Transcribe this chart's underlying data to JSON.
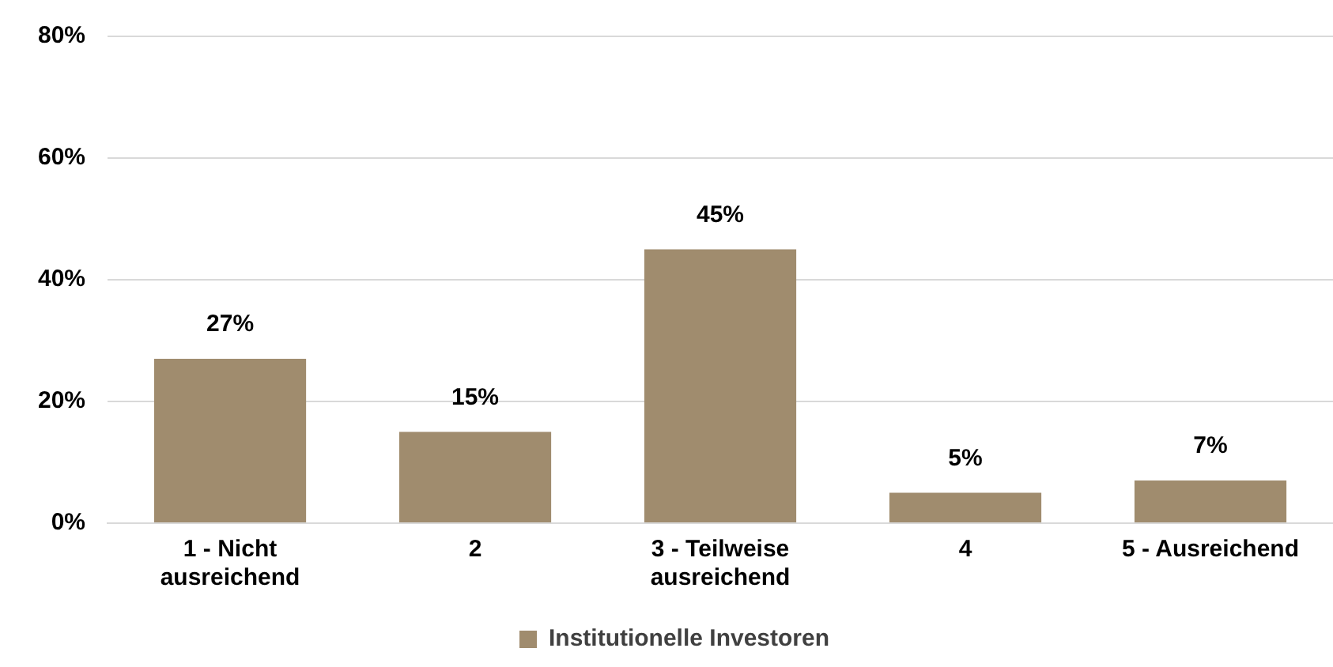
{
  "chart_data": {
    "type": "bar",
    "categories": [
      "1 - Nicht ausreichend",
      "2",
      "3 - Teilweise ausreichend",
      "4",
      "5 - Ausreichend"
    ],
    "series": [
      {
        "name": "Institutionelle Investoren",
        "color": "#a08c6e",
        "values": [
          27,
          15,
          45,
          5,
          7
        ],
        "value_labels": [
          "27%",
          "15%",
          "45%",
          "5%",
          "7%"
        ]
      }
    ],
    "ylim": [
      0,
      80
    ],
    "yticks": [
      {
        "value": 0,
        "label": "0%"
      },
      {
        "value": 20,
        "label": "20%"
      },
      {
        "value": 40,
        "label": "40%"
      },
      {
        "value": 60,
        "label": "60%"
      },
      {
        "value": 80,
        "label": "80%"
      }
    ],
    "grid": "y",
    "legend": "bottom"
  }
}
